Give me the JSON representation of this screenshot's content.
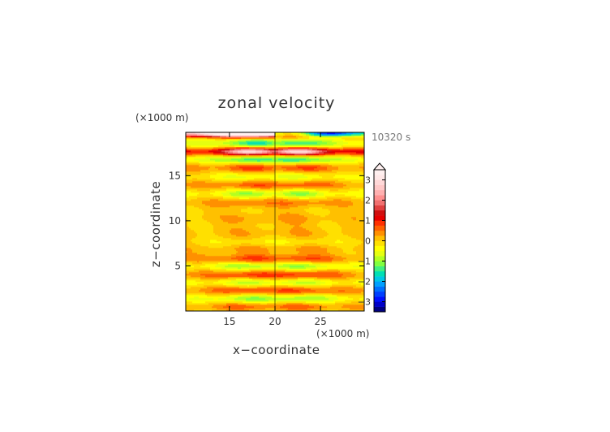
{
  "chart_data": {
    "type": "heatmap",
    "title": "zonal velocity",
    "xlabel": "x−coordinate",
    "ylabel": "z−coordinate",
    "x_unit": "(×1000 m)",
    "y_unit": "(×1000 m)",
    "time_label": "10320 s",
    "xlim": [
      10.2,
      29.8
    ],
    "ylim": [
      0,
      19.8
    ],
    "x_ticks": [
      {
        "value": 15,
        "label": "15"
      },
      {
        "value": 20,
        "label": "20"
      },
      {
        "value": 25,
        "label": "25"
      }
    ],
    "y_ticks": [
      {
        "value": 5,
        "label": "5"
      },
      {
        "value": 10,
        "label": "10"
      },
      {
        "value": 15,
        "label": "15"
      }
    ],
    "colorbar": {
      "min": -3.5,
      "max": 3.5,
      "step": 0.25,
      "extend": "max",
      "ticks": [
        {
          "value": 3,
          "label": "3"
        },
        {
          "value": 2,
          "label": "2"
        },
        {
          "value": 1,
          "label": "1"
        },
        {
          "value": 0,
          "label": "0"
        },
        {
          "value": -1,
          "label": "−1"
        },
        {
          "value": -2,
          "label": "−2"
        },
        {
          "value": -3,
          "label": "−3"
        }
      ],
      "colors": [
        "#000080",
        "#0000c8",
        "#0010ff",
        "#0040ff",
        "#0070ff",
        "#00a0ff",
        "#00c8e6",
        "#00e0b4",
        "#40f080",
        "#80ff40",
        "#b4ff20",
        "#e6ff10",
        "#ffff00",
        "#ffe000",
        "#ffc000",
        "#ff9000",
        "#ff6000",
        "#ff3000",
        "#e60000",
        "#d01010",
        "#e04040",
        "#f07070",
        "#ff9090",
        "#ffb0b0",
        "#ffc8c8",
        "#ffd8d8",
        "#ffe8e8",
        "#fff0f0"
      ]
    },
    "bands": [
      {
        "z": 19.7,
        "amp": 3.2,
        "half_width": 0.45,
        "x_scale": 3.0
      },
      {
        "z": 18.6,
        "amp": -1.6,
        "half_width": 0.55,
        "x_scale": 3.0
      },
      {
        "z": 17.7,
        "amp": 3.0,
        "half_width": 0.45,
        "x_scale": 3.0
      },
      {
        "z": 16.8,
        "amp": -1.6,
        "half_width": 0.45,
        "x_scale": 3.0
      },
      {
        "z": 15.9,
        "amp": 0.8,
        "half_width": 0.5,
        "x_scale": 3.5
      },
      {
        "z": 14.9,
        "amp": -0.6,
        "half_width": 0.45,
        "x_scale": 3.5
      },
      {
        "z": 14.0,
        "amp": 0.7,
        "half_width": 0.45,
        "x_scale": 3.5
      },
      {
        "z": 13.0,
        "amp": -1.0,
        "half_width": 0.45,
        "x_scale": 3.0
      },
      {
        "z": 12.0,
        "amp": 0.5,
        "half_width": 0.5,
        "x_scale": 3.5
      },
      {
        "z": 10.3,
        "amp": 0.3,
        "half_width": 0.6,
        "x_scale": 2.5
      },
      {
        "z": 8.6,
        "amp": 0.2,
        "half_width": 0.8,
        "x_scale": 4.0
      },
      {
        "z": 7.7,
        "amp": -0.3,
        "half_width": 0.5,
        "x_scale": 4.0
      },
      {
        "z": 6.9,
        "amp": 0.3,
        "half_width": 0.5,
        "x_scale": 4.0
      },
      {
        "z": 5.8,
        "amp": 0.8,
        "half_width": 0.5,
        "x_scale": 4.0
      },
      {
        "z": 5.0,
        "amp": -1.0,
        "half_width": 0.45,
        "x_scale": 4.0
      },
      {
        "z": 4.0,
        "amp": 0.9,
        "half_width": 0.5,
        "x_scale": 4.0
      },
      {
        "z": 3.2,
        "amp": -0.8,
        "half_width": 0.45,
        "x_scale": 4.0
      },
      {
        "z": 2.3,
        "amp": 0.8,
        "half_width": 0.45,
        "x_scale": 4.0
      },
      {
        "z": 1.4,
        "amp": -1.0,
        "half_width": 0.45,
        "x_scale": 4.0
      },
      {
        "z": 0.5,
        "amp": 0.6,
        "half_width": 0.4,
        "x_scale": 4.0
      }
    ]
  }
}
